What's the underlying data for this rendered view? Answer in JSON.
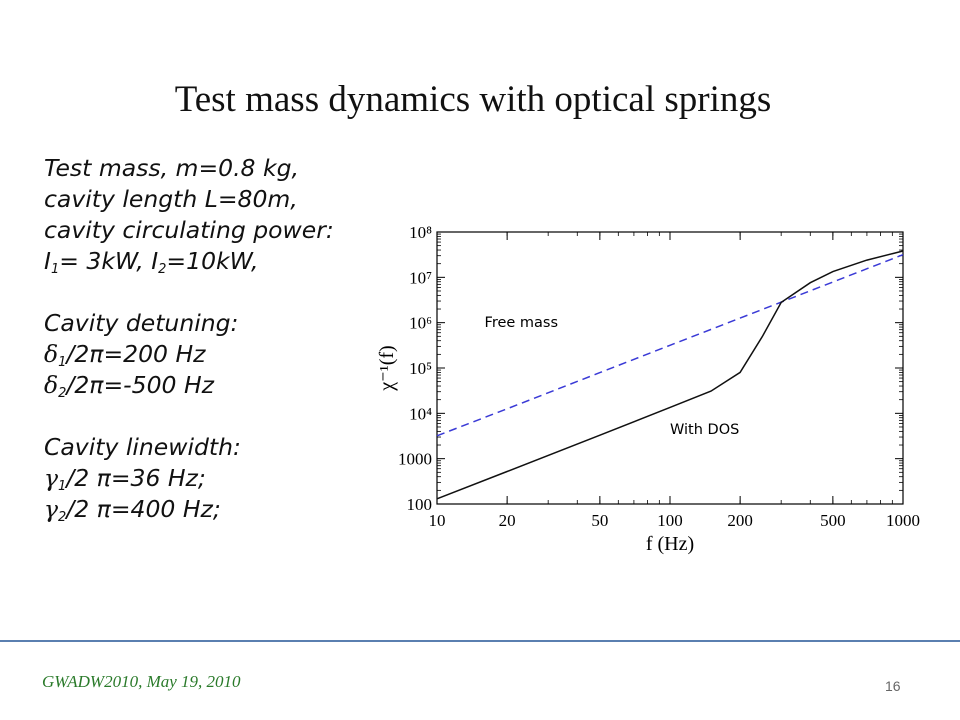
{
  "slide": {
    "title": "Test mass dynamics with optical springs",
    "page_number": "16",
    "footer": "GWADW2010, May 19, 2010"
  },
  "params": {
    "mass": "Test mass, m=0.8 kg,",
    "length": "cavity length L=80m,",
    "power_heading": "cavity circulating power:",
    "power_I_sym": "I",
    "power_1_sub": "1",
    "power_1_val": "= 3kW, ",
    "power_2_sub": "2",
    "power_2_val": "=10kW,",
    "detuning_heading": "Cavity detuning:",
    "delta_sym": "δ",
    "delta1_sub": "1",
    "delta1_val": "/2π=200 Hz",
    "delta2_sub": "2",
    "delta2_val": "/2π=-500 Hz",
    "linewidth_heading": "Cavity  linewidth:",
    "gamma_sym": "γ",
    "gamma1_sub": "1",
    "gamma1_val": "/2 π=36 Hz;",
    "gamma2_sub": "2",
    "gamma2_val": "/2 π=400 Hz;"
  },
  "chart_data": {
    "type": "line",
    "xlabel": "f (Hz)",
    "ylabel": "χ⁻¹(f)",
    "xscale": "log",
    "yscale": "log",
    "xlim": [
      10,
      1000
    ],
    "ylim": [
      100,
      100000000
    ],
    "x_tick_labels": [
      "10",
      "20",
      "50",
      "100",
      "200",
      "500",
      "1000"
    ],
    "x_ticks": [
      10,
      20,
      50,
      100,
      200,
      500,
      1000
    ],
    "y_tick_labels": [
      "100",
      "1000",
      "10⁴",
      "10⁵",
      "10⁶",
      "10⁷",
      "10⁸"
    ],
    "y_ticks": [
      100,
      1000,
      10000,
      100000,
      1000000,
      10000000,
      100000000
    ],
    "grid": false,
    "series": [
      {
        "name": "Free mass",
        "color": "#3a3ad6",
        "dash": "dashed",
        "x": [
          10,
          20,
          50,
          100,
          200,
          500,
          1000
        ],
        "y": [
          3200,
          12600,
          79000,
          316000,
          1260000,
          7900000,
          31600000
        ]
      },
      {
        "name": "With DOS",
        "color": "#111111",
        "dash": "solid",
        "x": [
          10,
          20,
          50,
          100,
          150,
          200,
          250,
          300,
          400,
          500,
          700,
          1000
        ],
        "y": [
          130,
          520,
          3300,
          13500,
          31000,
          80000,
          510000,
          2800000,
          7600000,
          13400000,
          24000000,
          38000000
        ]
      }
    ],
    "annotations": [
      {
        "text": "Free mass",
        "x": 16,
        "y": 800000
      },
      {
        "text": "With DOS",
        "x": 100,
        "y": 3500
      }
    ]
  }
}
